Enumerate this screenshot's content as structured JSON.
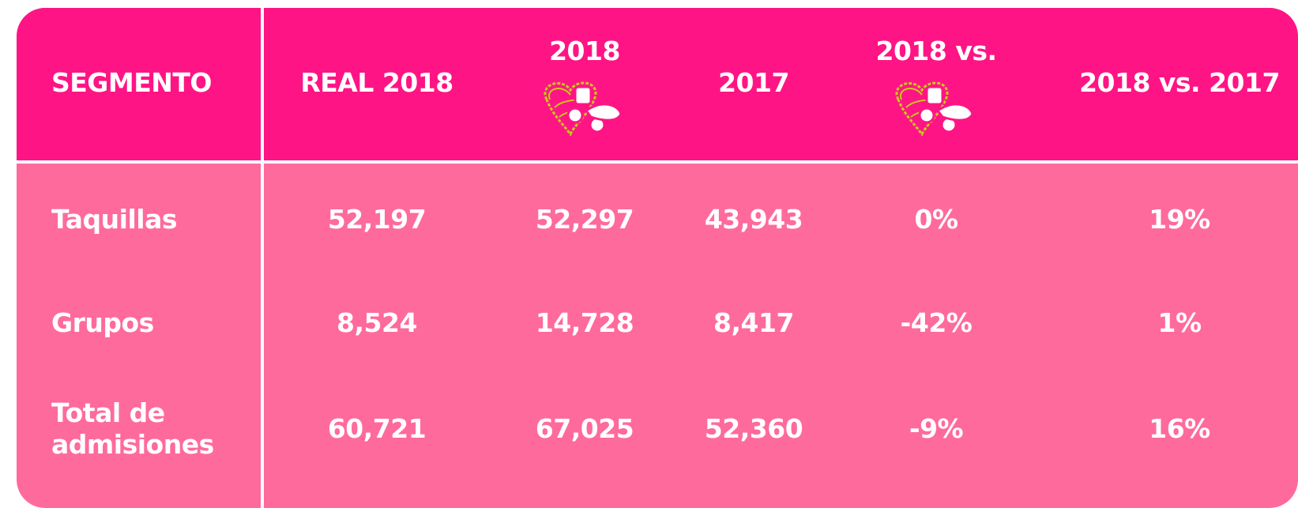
{
  "table": {
    "header": [
      "SEGMENTO",
      "REAL 2018",
      "2018",
      "2017",
      "2018 vs.",
      "2018 vs. 2017"
    ],
    "rows": [
      [
        "Taquillas",
        "52,197",
        "52,297",
        "43,943",
        "0%",
        "19%"
      ],
      [
        "Grupos",
        "8,524",
        "14,728",
        "8,417",
        "-42%",
        "1%"
      ],
      [
        "Total de admisiones",
        "60,721",
        "67,025",
        "52,360",
        "-9%",
        "16%"
      ]
    ]
  }
}
